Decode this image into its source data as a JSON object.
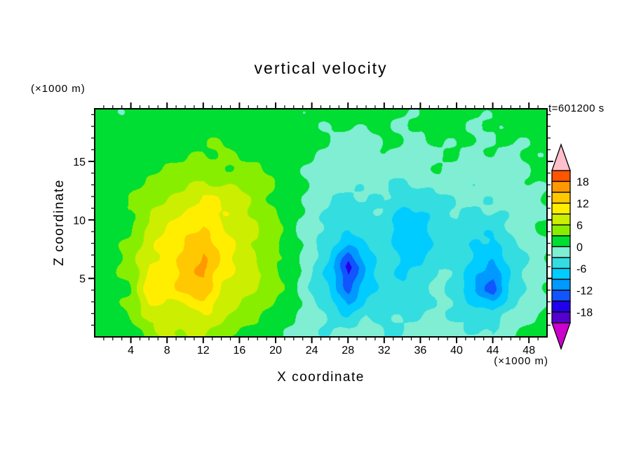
{
  "title": "vertical velocity",
  "timestamp": "t=601200 s",
  "axes": {
    "x_label": "X coordinate",
    "x_units": "(×1000 m)",
    "y_label": "Z coordinate",
    "y_units": "(×1000 m)"
  },
  "chart_data": {
    "type": "heatmap",
    "title": "vertical velocity",
    "xlabel": "X coordinate",
    "ylabel": "Z coordinate",
    "x_axis_units": "(×1000 m)",
    "y_axis_units": "(×1000 m)",
    "time_annotation": "t=601200 s",
    "xlim": [
      0,
      50
    ],
    "ylim": [
      0,
      19.5
    ],
    "x_major_tick_every": 4,
    "y_major_tick_every": 5,
    "minor_tick_step": 1,
    "x_ticks": [
      {
        "value": 4,
        "label": "4"
      },
      {
        "value": 8,
        "label": "8"
      },
      {
        "value": 12,
        "label": "12"
      },
      {
        "value": 16,
        "label": "16"
      },
      {
        "value": 20,
        "label": "20"
      },
      {
        "value": 24,
        "label": "24"
      },
      {
        "value": 28,
        "label": "28"
      },
      {
        "value": 32,
        "label": "32"
      },
      {
        "value": 36,
        "label": "36"
      },
      {
        "value": 40,
        "label": "40"
      },
      {
        "value": 44,
        "label": "44"
      },
      {
        "value": 48,
        "label": "48"
      }
    ],
    "y_ticks": [
      {
        "value": 5,
        "label": "5"
      },
      {
        "value": 10,
        "label": "10"
      },
      {
        "value": 15,
        "label": "15"
      }
    ],
    "grid_x": [
      0,
      2,
      4,
      6,
      8,
      10,
      12,
      14,
      16,
      18,
      20,
      22,
      24,
      26,
      28,
      30,
      32,
      34,
      36,
      38,
      40,
      42,
      44,
      46,
      48,
      50
    ],
    "grid_z": [
      0,
      2,
      4,
      6,
      8,
      10,
      12,
      14,
      16,
      18,
      20
    ],
    "values": [
      [
        1,
        1,
        2,
        4,
        6,
        5,
        6,
        4,
        2,
        2,
        1,
        0,
        -2,
        -3,
        -2,
        -1,
        -3,
        -2,
        -1,
        -1,
        -2,
        -2,
        -3,
        -1,
        1,
        1
      ],
      [
        1,
        1,
        3,
        7,
        8,
        7,
        9,
        7,
        5,
        4,
        2,
        0,
        -2,
        -4,
        -6,
        -3,
        -4,
        -4,
        -3,
        -2,
        -3,
        -5,
        -5,
        -2,
        -1,
        1
      ],
      [
        1,
        2,
        3,
        12,
        10,
        13,
        15,
        9,
        7,
        5,
        3,
        1,
        -3,
        -6,
        -13,
        -7,
        -4,
        -5,
        -5,
        -3,
        -5,
        -9,
        -13,
        -5,
        -2,
        0
      ],
      [
        1,
        2,
        4,
        9,
        11,
        14,
        16,
        11,
        8,
        6,
        3,
        1,
        -3,
        -7,
        -16,
        -8,
        -4,
        -7,
        -6,
        -3,
        -4,
        -8,
        -10,
        -5,
        -2,
        0
      ],
      [
        1,
        2,
        4,
        8,
        10,
        12,
        14,
        11,
        8,
        6,
        4,
        1,
        -2,
        -5,
        -9,
        -6,
        -4,
        -8,
        -8,
        -4,
        -4,
        -6,
        -7,
        -4,
        -2,
        0
      ],
      [
        1,
        2,
        3,
        6,
        8,
        10,
        11,
        9,
        8,
        6,
        4,
        1,
        -2,
        -4,
        -5,
        -4,
        -4,
        -8,
        -7,
        -4,
        -3,
        -4,
        -4,
        -3,
        -1,
        0
      ],
      [
        1,
        2,
        3,
        5,
        6,
        7,
        9,
        8,
        7,
        5,
        3,
        1,
        -1,
        -3,
        -3,
        -3,
        -3,
        -5,
        -4,
        -3,
        -2,
        -3,
        -3,
        -2,
        -1,
        0
      ],
      [
        1,
        1,
        2,
        3,
        4,
        4,
        5,
        4,
        4,
        3,
        2,
        1,
        0,
        -1,
        -2,
        -2,
        -2,
        -2,
        -2,
        -1,
        -1,
        -2,
        -1,
        -1,
        0,
        1
      ],
      [
        1,
        1,
        1,
        2,
        2,
        3,
        3,
        3,
        2,
        2,
        1,
        1,
        0,
        0,
        -1,
        -1,
        0,
        -1,
        -1,
        0,
        0,
        -1,
        0,
        0,
        1,
        1
      ],
      [
        1,
        1,
        1,
        1,
        2,
        2,
        2,
        2,
        2,
        1,
        1,
        1,
        1,
        0,
        0,
        0,
        1,
        0,
        0,
        1,
        1,
        0,
        0,
        1,
        1,
        1
      ],
      [
        1,
        1,
        1,
        1,
        1,
        1,
        1,
        1,
        1,
        1,
        1,
        1,
        1,
        1,
        1,
        1,
        1,
        1,
        1,
        1,
        1,
        1,
        1,
        1,
        1,
        1
      ]
    ],
    "colorbar": {
      "level_min": -21,
      "level_max": 21,
      "level_step": 3,
      "colors_low_to_high": [
        "#5500cc",
        "#2200ee",
        "#1155ff",
        "#0099ff",
        "#00ccff",
        "#33dde0",
        "#7feed2",
        "#00dd33",
        "#88ee00",
        "#ccee00",
        "#ffee00",
        "#ffc800",
        "#ff9900",
        "#ff5500"
      ],
      "under_arrow_color": "#cc00cc",
      "over_arrow_color": "#ffc0cc",
      "tick_labels": [
        {
          "value": 18,
          "label": "18"
        },
        {
          "value": 12,
          "label": "12"
        },
        {
          "value": 6,
          "label": "6"
        },
        {
          "value": 0,
          "label": "0"
        },
        {
          "value": -6,
          "label": "-6"
        },
        {
          "value": -12,
          "label": "-12"
        },
        {
          "value": -18,
          "label": "-18"
        }
      ]
    }
  }
}
